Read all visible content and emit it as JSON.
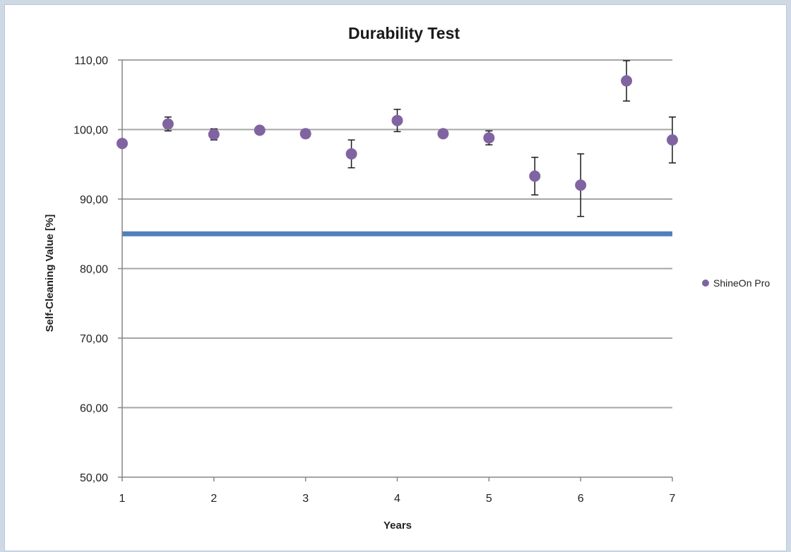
{
  "chart_data": {
    "type": "scatter",
    "title": "Durability Test",
    "xlabel": "Years",
    "ylabel": "Self-Cleaning Value  [%]",
    "xlim": [
      1,
      7
    ],
    "ylim": [
      50,
      110
    ],
    "x_ticks": [
      "1",
      "2",
      "3",
      "4",
      "5",
      "6",
      "7"
    ],
    "y_ticks": [
      "50,00",
      "60,00",
      "70,00",
      "80,00",
      "90,00",
      "100,00",
      "110,00"
    ],
    "grid": true,
    "legend_position": "right",
    "series": [
      {
        "name": "ShineOn Pro",
        "color": "#8064a2",
        "x": [
          1.0,
          1.5,
          2.0,
          2.5,
          3.0,
          3.5,
          4.0,
          4.5,
          5.0,
          5.5,
          6.0,
          6.5,
          7.0
        ],
        "y": [
          98.0,
          100.8,
          99.3,
          99.9,
          99.4,
          96.5,
          101.3,
          99.4,
          98.8,
          93.3,
          92.0,
          107.0,
          98.5
        ],
        "y_error": [
          0.0,
          1.0,
          0.8,
          0.3,
          0.6,
          2.0,
          1.6,
          0.3,
          1.0,
          2.7,
          4.5,
          2.9,
          3.3
        ]
      }
    ],
    "reference_line": {
      "y": 85,
      "color": "#4f81bd"
    },
    "axis_color": "#868686",
    "grid_color": "#a6a6a6"
  }
}
